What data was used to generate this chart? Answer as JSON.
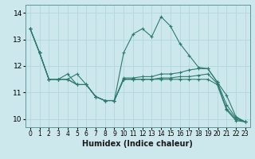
{
  "title": "",
  "xlabel": "Humidex (Indice chaleur)",
  "background_color": "#cde8ec",
  "grid_color": "#b0d8de",
  "line_color": "#2d7b6f",
  "xlim": [
    -0.5,
    23.5
  ],
  "ylim": [
    9.7,
    14.3
  ],
  "xticks": [
    0,
    1,
    2,
    3,
    4,
    5,
    6,
    7,
    8,
    9,
    10,
    11,
    12,
    13,
    14,
    15,
    16,
    17,
    18,
    19,
    20,
    21,
    22,
    23
  ],
  "yticks": [
    10,
    11,
    12,
    13,
    14
  ],
  "series": [
    [
      13.4,
      12.5,
      11.5,
      11.5,
      11.5,
      11.7,
      11.3,
      10.85,
      10.7,
      10.7,
      12.5,
      13.2,
      13.4,
      13.1,
      13.85,
      13.5,
      12.85,
      12.4,
      11.95,
      11.9,
      11.4,
      10.9,
      10.1,
      9.9
    ],
    [
      13.4,
      12.5,
      11.5,
      11.5,
      11.7,
      11.3,
      11.3,
      10.85,
      10.7,
      10.7,
      11.55,
      11.55,
      11.6,
      11.6,
      11.7,
      11.7,
      11.75,
      11.85,
      11.9,
      11.9,
      11.4,
      10.55,
      10.05,
      9.9
    ],
    [
      13.4,
      12.5,
      11.5,
      11.5,
      11.5,
      11.3,
      11.3,
      10.85,
      10.7,
      10.7,
      11.5,
      11.5,
      11.5,
      11.5,
      11.55,
      11.55,
      11.6,
      11.6,
      11.65,
      11.7,
      11.35,
      10.4,
      10.0,
      9.9
    ],
    [
      13.4,
      12.5,
      11.5,
      11.5,
      11.5,
      11.3,
      11.3,
      10.85,
      10.7,
      10.7,
      11.5,
      11.5,
      11.5,
      11.5,
      11.5,
      11.5,
      11.5,
      11.5,
      11.5,
      11.5,
      11.3,
      10.35,
      9.95,
      9.9
    ]
  ]
}
